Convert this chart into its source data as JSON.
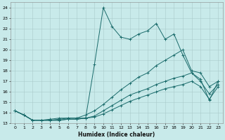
{
  "xlabel": "Humidex (Indice chaleur)",
  "bg_color": "#c8eaea",
  "grid_color": "#aacaca",
  "line_color": "#1a6b6b",
  "xlim": [
    -0.5,
    23.5
  ],
  "ylim": [
    13,
    24.5
  ],
  "yticks": [
    13,
    14,
    15,
    16,
    17,
    18,
    19,
    20,
    21,
    22,
    23,
    24
  ],
  "xticks": [
    0,
    1,
    2,
    3,
    4,
    5,
    6,
    7,
    8,
    9,
    10,
    11,
    12,
    13,
    14,
    15,
    16,
    17,
    18,
    19,
    20,
    21,
    22,
    23
  ],
  "series": [
    {
      "x": [
        0,
        1,
        2,
        3,
        4,
        5,
        6,
        7,
        8,
        9,
        10,
        11,
        12,
        13,
        14,
        15,
        16,
        17,
        18,
        19,
        20,
        21,
        22,
        23
      ],
      "y": [
        14.2,
        13.8,
        13.3,
        13.3,
        13.3,
        13.4,
        13.5,
        13.5,
        13.5,
        18.6,
        24.0,
        22.2,
        21.2,
        21.0,
        21.5,
        21.8,
        22.5,
        21.0,
        21.5,
        19.5,
        17.8,
        17.2,
        15.2,
        17.0
      ]
    },
    {
      "x": [
        0,
        1,
        2,
        3,
        4,
        5,
        6,
        7,
        8,
        9,
        10,
        11,
        12,
        13,
        14,
        15,
        16,
        17,
        18,
        19,
        20,
        21,
        22,
        23
      ],
      "y": [
        14.2,
        13.8,
        13.3,
        13.3,
        13.4,
        13.5,
        13.5,
        13.5,
        13.8,
        14.2,
        14.8,
        15.5,
        16.2,
        16.8,
        17.4,
        17.8,
        18.5,
        19.0,
        19.5,
        20.0,
        18.0,
        17.8,
        16.5,
        17.0
      ]
    },
    {
      "x": [
        0,
        1,
        2,
        3,
        4,
        5,
        6,
        7,
        8,
        9,
        10,
        11,
        12,
        13,
        14,
        15,
        16,
        17,
        18,
        19,
        20,
        21,
        22,
        23
      ],
      "y": [
        14.2,
        13.8,
        13.3,
        13.3,
        13.3,
        13.3,
        13.4,
        13.4,
        13.5,
        13.7,
        14.2,
        14.7,
        15.2,
        15.7,
        16.0,
        16.3,
        16.7,
        17.0,
        17.3,
        17.5,
        17.8,
        17.0,
        15.8,
        16.7
      ]
    },
    {
      "x": [
        0,
        1,
        2,
        3,
        4,
        5,
        6,
        7,
        8,
        9,
        10,
        11,
        12,
        13,
        14,
        15,
        16,
        17,
        18,
        19,
        20,
        21,
        22,
        23
      ],
      "y": [
        14.2,
        13.8,
        13.3,
        13.3,
        13.3,
        13.3,
        13.4,
        13.4,
        13.5,
        13.6,
        13.9,
        14.3,
        14.7,
        15.1,
        15.4,
        15.7,
        16.0,
        16.3,
        16.5,
        16.7,
        17.0,
        16.5,
        15.3,
        16.5
      ]
    }
  ]
}
